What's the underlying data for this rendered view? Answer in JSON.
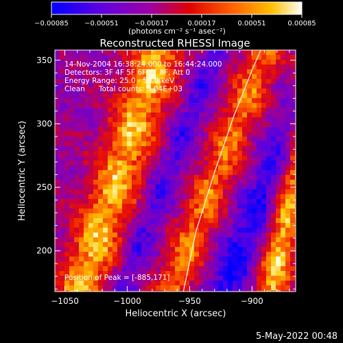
{
  "chart_data": {
    "type": "heatmap",
    "title": "Reconstructed RHESSI Image",
    "xlabel": "Heliocentric X (arcsec)",
    "ylabel": "Heliocentric Y (arcsec)",
    "xlim": [
      -1058,
      -865
    ],
    "ylim": [
      168,
      358
    ],
    "x_ticks": [
      -1050,
      -1000,
      -950,
      -900
    ],
    "y_ticks": [
      200,
      250,
      300,
      350
    ],
    "x_tick_labels": [
      "−1050",
      "−1000",
      "−950",
      "−900"
    ],
    "y_tick_labels": [
      "200",
      "250",
      "300",
      "350"
    ],
    "colorbar": {
      "units": "(photons cm⁻² s⁻¹ asec⁻²)",
      "ticks": [
        "−0.00085",
        "−0.00051",
        "−0.00017",
        "0.00017",
        "0.00051",
        "0.00085"
      ],
      "range": [
        -0.00085,
        0.00085
      ],
      "colors": [
        "#0000ff",
        "#5000e0",
        "#a000a0",
        "#e00000",
        "#ff6000",
        "#ffc000",
        "#ffffff"
      ]
    },
    "annotations": [
      "14-Nov-2004 16:38:24.000 to 16:44:24.000",
      "Detectors: 3F 4F 5F 6F 7F 8F, Att 0",
      "Energy Range: 25.0 - 50.0 keV",
      "Clean",
      "Total counts: 5.04E+03",
      "Position of Peak = [-885,171]"
    ],
    "limb_curve": [
      [
        -955,
        168
      ],
      [
        -945,
        215
      ],
      [
        -930,
        262
      ],
      [
        -915,
        305
      ],
      [
        -900,
        342
      ],
      [
        -893,
        358
      ]
    ],
    "bands": [
      {
        "x_at_bottom": -1038,
        "slope": 0.34,
        "width": 22,
        "peak": 0.0008
      },
      {
        "x_at_bottom": -965,
        "slope": 0.4,
        "width": 16,
        "peak": 0.00065
      },
      {
        "x_at_bottom": -885,
        "slope": 0.2,
        "width": 14,
        "peak": 0.00085
      }
    ],
    "troughs": [
      {
        "x_at_bottom": -1005,
        "slope": 0.4,
        "width": 12,
        "peak": -0.0004
      },
      {
        "x_at_bottom": -922,
        "slope": 0.42,
        "width": 16,
        "peak": -0.0006
      }
    ]
  },
  "footer": {
    "date": "5-May-2022 00:48"
  }
}
